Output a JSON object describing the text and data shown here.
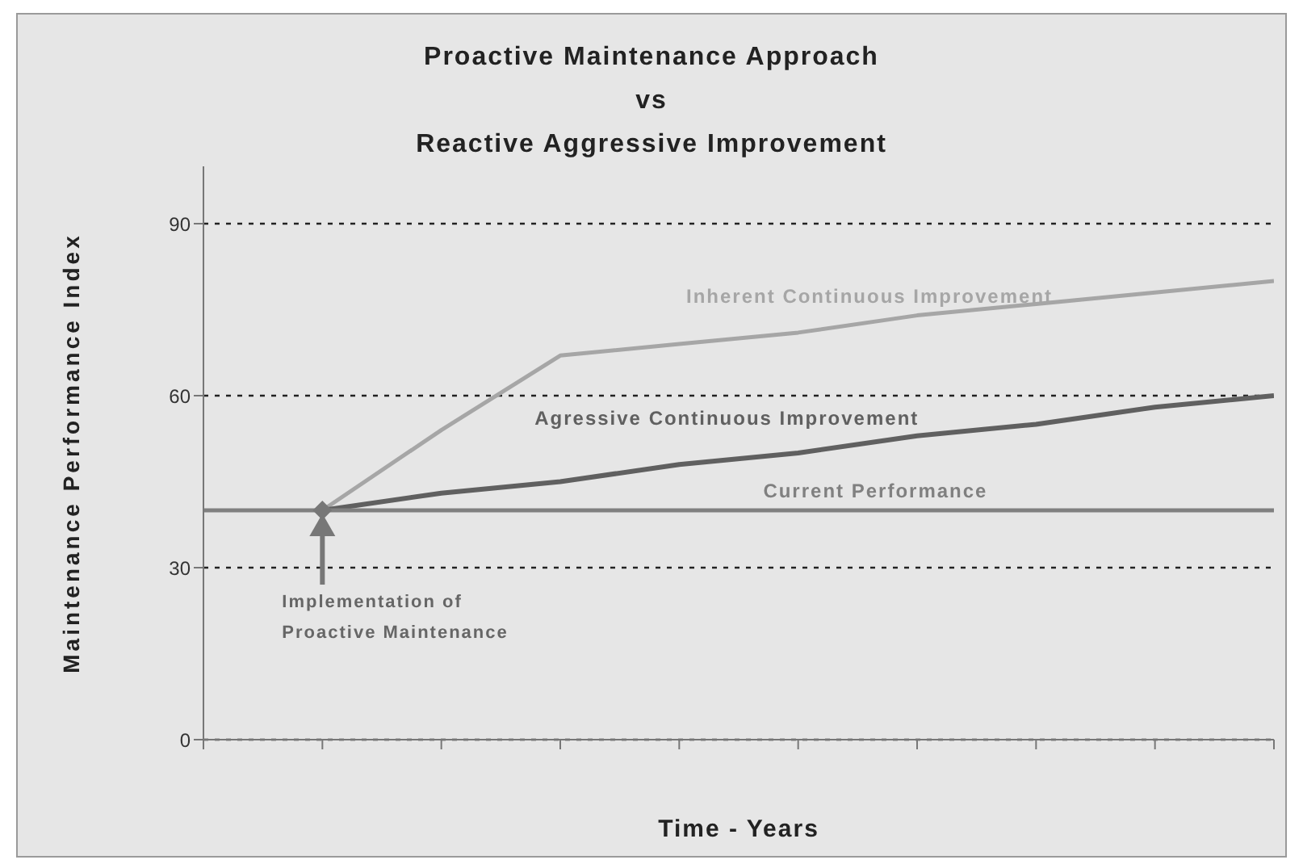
{
  "chart_data": {
    "type": "line",
    "title": "Proactive Maintenance Approach\nvs\nReactive Aggressive Improvement",
    "xlabel": "Time - Years",
    "ylabel": "Maintenance Performance Index",
    "categories": [
      null,
      null,
      null,
      null,
      null,
      null,
      null,
      null,
      null,
      null
    ],
    "series": [
      {
        "name": "Inherent Continuous Improvement",
        "color": "#a6a6a6",
        "values": [
          null,
          40,
          54,
          67,
          69,
          71,
          74,
          76,
          78,
          80
        ]
      },
      {
        "name": "Agressive Continuous Improvement",
        "color": "#606060",
        "values": [
          null,
          40,
          43,
          45,
          48,
          50,
          53,
          55,
          58,
          60
        ]
      },
      {
        "name": "Current Performance",
        "color": "#808080",
        "values": [
          40,
          40,
          40,
          40,
          40,
          40,
          40,
          40,
          40,
          40
        ]
      }
    ],
    "ylim": [
      0,
      100
    ],
    "yticks": [
      0,
      30,
      60,
      90
    ],
    "grid": "y",
    "marker": "none",
    "line_style": "solid",
    "annotations": [
      "Implementation of Proactive Maintenance"
    ]
  }
}
